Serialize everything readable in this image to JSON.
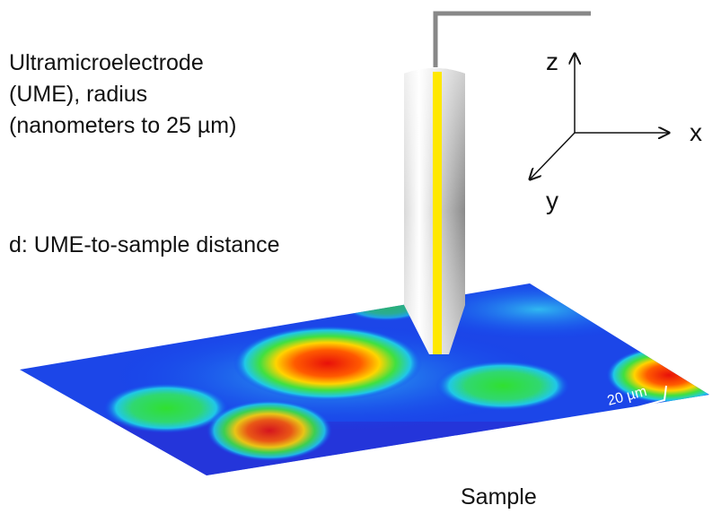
{
  "electrode_label": {
    "lines": [
      "Ultramicroelectrode",
      "(UME), radius",
      "(nanometers to 25 µm)"
    ]
  },
  "distance_label": "d: UME-to-sample distance",
  "axes": {
    "z": "z",
    "x": "x",
    "y": "y"
  },
  "scale_bar": "20 µm",
  "sample_label": "Sample"
}
